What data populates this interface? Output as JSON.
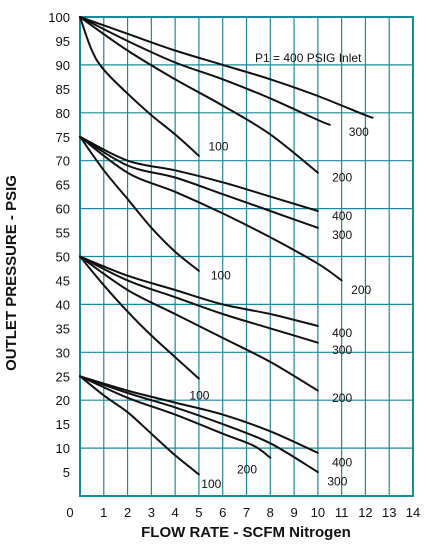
{
  "chart_data": {
    "type": "line",
    "xlabel": "FLOW RATE - SCFM Nitrogen",
    "ylabel": "OUTLET PRESSURE - PSIG",
    "xlim": [
      0,
      14
    ],
    "ylim": [
      0,
      100
    ],
    "x_ticks": [
      "0",
      "1",
      "2",
      "3",
      "4",
      "5",
      "6",
      "7",
      "8",
      "9",
      "10",
      "11",
      "12",
      "13",
      "14"
    ],
    "y_ticks": [
      "5",
      "10",
      "15",
      "20",
      "25",
      "30",
      "35",
      "40",
      "45",
      "50",
      "55",
      "60",
      "65",
      "70",
      "75",
      "80",
      "85",
      "90",
      "95",
      "100"
    ],
    "grid": true,
    "grid_color": "#1a8a9a",
    "line_color": "#111111",
    "annotation": "P1 = 400 PSIG Inlet",
    "series": [
      {
        "name": "100",
        "points": [
          [
            0,
            100
          ],
          [
            0.5,
            93
          ],
          [
            1,
            89
          ],
          [
            2,
            84
          ],
          [
            3,
            79.5
          ],
          [
            4,
            75.5
          ],
          [
            5,
            71
          ]
        ],
        "label_at": [
          5.4,
          73
        ]
      },
      {
        "name": "200",
        "points": [
          [
            0,
            100
          ],
          [
            2,
            93
          ],
          [
            4,
            87
          ],
          [
            6,
            81.5
          ],
          [
            8,
            75.5
          ],
          [
            10,
            67.5
          ]
        ],
        "label_at": [
          10.6,
          66.5
        ]
      },
      {
        "name": "300",
        "points": [
          [
            0,
            100
          ],
          [
            2,
            95
          ],
          [
            4,
            90.5
          ],
          [
            6,
            87
          ],
          [
            8,
            83
          ],
          [
            10,
            78.5
          ],
          [
            10.5,
            77.5
          ]
        ],
        "label_at": [
          11.3,
          76
        ]
      },
      {
        "name": "",
        "points": [
          [
            0,
            100
          ],
          [
            2,
            96.5
          ],
          [
            4,
            93
          ],
          [
            6,
            90
          ],
          [
            8,
            87
          ],
          [
            10,
            83.5
          ],
          [
            12,
            79.5
          ],
          [
            12.3,
            79
          ]
        ]
      },
      {
        "name": "100",
        "points": [
          [
            0,
            75
          ],
          [
            1,
            68
          ],
          [
            2,
            62
          ],
          [
            3,
            56
          ],
          [
            4,
            51
          ],
          [
            5,
            47
          ]
        ],
        "label_at": [
          5.5,
          46
        ]
      },
      {
        "name": "200",
        "points": [
          [
            0,
            75
          ],
          [
            2,
            67.5
          ],
          [
            4,
            63.5
          ],
          [
            6,
            59
          ],
          [
            8,
            54
          ],
          [
            10,
            48.5
          ],
          [
            11,
            45
          ]
        ],
        "label_at": [
          11.4,
          43
        ]
      },
      {
        "name": "300",
        "points": [
          [
            0,
            75
          ],
          [
            2,
            69
          ],
          [
            4,
            66.5
          ],
          [
            6,
            63
          ],
          [
            8,
            59.5
          ],
          [
            10,
            56
          ]
        ],
        "label_at": [
          10.6,
          54.5
        ]
      },
      {
        "name": "400",
        "points": [
          [
            0,
            75
          ],
          [
            2,
            70
          ],
          [
            4,
            68
          ],
          [
            6,
            65.5
          ],
          [
            8,
            62.5
          ],
          [
            10,
            59.5
          ]
        ],
        "label_at": [
          10.6,
          58.5
        ]
      },
      {
        "name": "100",
        "points": [
          [
            0,
            50
          ],
          [
            1,
            44
          ],
          [
            2,
            38.5
          ],
          [
            3,
            33.5
          ],
          [
            4,
            29
          ],
          [
            5,
            24.5
          ]
        ],
        "label_at": [
          4.6,
          21
        ]
      },
      {
        "name": "200",
        "points": [
          [
            0,
            50
          ],
          [
            2,
            43
          ],
          [
            4,
            38
          ],
          [
            6,
            33
          ],
          [
            8,
            28
          ],
          [
            10,
            22
          ]
        ],
        "label_at": [
          10.6,
          20.5
        ]
      },
      {
        "name": "300",
        "points": [
          [
            0,
            50
          ],
          [
            2,
            45
          ],
          [
            4,
            41.5
          ],
          [
            6,
            38
          ],
          [
            8,
            35
          ],
          [
            10,
            32
          ]
        ],
        "label_at": [
          10.6,
          30.5
        ]
      },
      {
        "name": "400",
        "points": [
          [
            0,
            50
          ],
          [
            2,
            46
          ],
          [
            4,
            43
          ],
          [
            6,
            40
          ],
          [
            8,
            38
          ],
          [
            10,
            35.5
          ]
        ],
        "label_at": [
          10.6,
          34
        ]
      },
      {
        "name": "100",
        "points": [
          [
            0,
            25
          ],
          [
            1,
            21
          ],
          [
            2,
            17.5
          ],
          [
            3,
            13
          ],
          [
            4,
            8.5
          ],
          [
            5,
            4.5
          ]
        ],
        "label_at": [
          5.1,
          2.5
        ]
      },
      {
        "name": "200",
        "points": [
          [
            0,
            25
          ],
          [
            2,
            20.5
          ],
          [
            4,
            17
          ],
          [
            6,
            13
          ],
          [
            7.3,
            10.5
          ],
          [
            8,
            8
          ]
        ],
        "label_at": [
          6.6,
          5.5
        ]
      },
      {
        "name": "300",
        "points": [
          [
            0,
            25
          ],
          [
            2,
            21.5
          ],
          [
            4,
            18.5
          ],
          [
            6,
            15
          ],
          [
            8,
            11
          ],
          [
            10,
            5
          ]
        ],
        "label_at": [
          10.4,
          3
        ]
      },
      {
        "name": "400",
        "points": [
          [
            0,
            25
          ],
          [
            2,
            22
          ],
          [
            4,
            19.5
          ],
          [
            6,
            17
          ],
          [
            8,
            13.5
          ],
          [
            10,
            9
          ]
        ],
        "label_at": [
          10.6,
          7
        ]
      }
    ]
  }
}
